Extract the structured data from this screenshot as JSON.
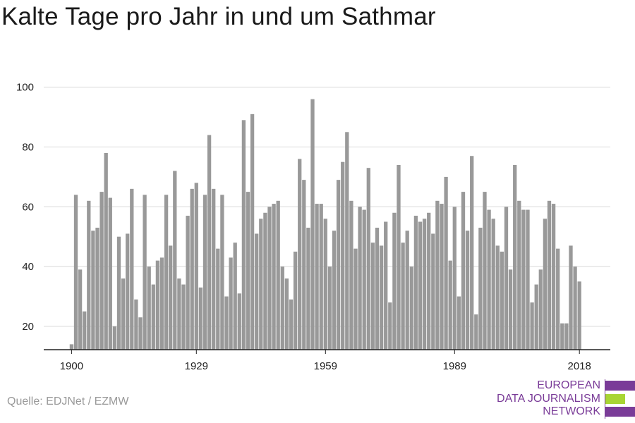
{
  "header": {
    "title": "Kalte Tage pro Jahr in und um Sathmar"
  },
  "footer": {
    "source": "Quelle: EDJNet / EZMW"
  },
  "logo": {
    "lines": [
      "EUROPEAN",
      "DATA JOURNALISM",
      "NETWORK"
    ],
    "bar_colors": [
      "#7a3c98",
      "#a8d534",
      "#7a3c98"
    ]
  },
  "colors": {
    "bar": "#999999",
    "grid": "#d9d9d9",
    "axis": "#222222"
  },
  "chart_data": {
    "type": "bar",
    "title": "Kalte Tage pro Jahr in und um Sathmar",
    "xlabel": "",
    "ylabel": "",
    "ylim": [
      12,
      104
    ],
    "xlim": [
      1900,
      2018
    ],
    "yticks": [
      20,
      40,
      60,
      80,
      100
    ],
    "xticks": [
      "1900",
      "1929",
      "1959",
      "1989",
      "2018"
    ],
    "grid": true,
    "x": [
      1900,
      1901,
      1902,
      1903,
      1904,
      1905,
      1906,
      1907,
      1908,
      1909,
      1910,
      1911,
      1912,
      1913,
      1914,
      1915,
      1916,
      1917,
      1918,
      1919,
      1920,
      1921,
      1922,
      1923,
      1924,
      1925,
      1926,
      1927,
      1928,
      1929,
      1930,
      1931,
      1932,
      1933,
      1934,
      1935,
      1936,
      1937,
      1938,
      1939,
      1940,
      1941,
      1942,
      1943,
      1944,
      1945,
      1946,
      1947,
      1948,
      1949,
      1950,
      1951,
      1952,
      1953,
      1954,
      1955,
      1956,
      1957,
      1958,
      1959,
      1960,
      1961,
      1962,
      1963,
      1964,
      1965,
      1966,
      1967,
      1968,
      1969,
      1970,
      1971,
      1972,
      1973,
      1974,
      1975,
      1976,
      1977,
      1978,
      1979,
      1980,
      1981,
      1982,
      1983,
      1984,
      1985,
      1986,
      1987,
      1988,
      1989,
      1990,
      1991,
      1992,
      1993,
      1994,
      1995,
      1996,
      1997,
      1998,
      1999,
      2000,
      2001,
      2002,
      2003,
      2004,
      2005,
      2006,
      2007,
      2008,
      2009,
      2010,
      2011,
      2012,
      2013,
      2014,
      2015,
      2016,
      2017,
      2018
    ],
    "values": [
      14,
      64,
      39,
      25,
      62,
      52,
      53,
      65,
      78,
      63,
      20,
      50,
      36,
      51,
      66,
      29,
      23,
      64,
      40,
      34,
      42,
      43,
      64,
      47,
      72,
      36,
      34,
      57,
      66,
      68,
      33,
      64,
      84,
      66,
      46,
      64,
      30,
      43,
      48,
      31,
      89,
      65,
      91,
      51,
      56,
      58,
      60,
      61,
      62,
      40,
      36,
      29,
      45,
      76,
      69,
      53,
      96,
      61,
      61,
      56,
      40,
      52,
      69,
      75,
      85,
      62,
      46,
      60,
      59,
      73,
      48,
      53,
      47,
      55,
      28,
      58,
      74,
      48,
      52,
      40,
      57,
      55,
      56,
      58,
      51,
      62,
      61,
      70,
      42,
      60,
      30,
      65,
      52,
      77,
      24,
      53,
      65,
      59,
      56,
      47,
      45,
      60,
      39,
      74,
      62,
      59,
      59,
      28,
      34,
      39,
      56,
      62,
      61,
      46,
      21,
      21,
      47,
      40,
      35
    ]
  }
}
